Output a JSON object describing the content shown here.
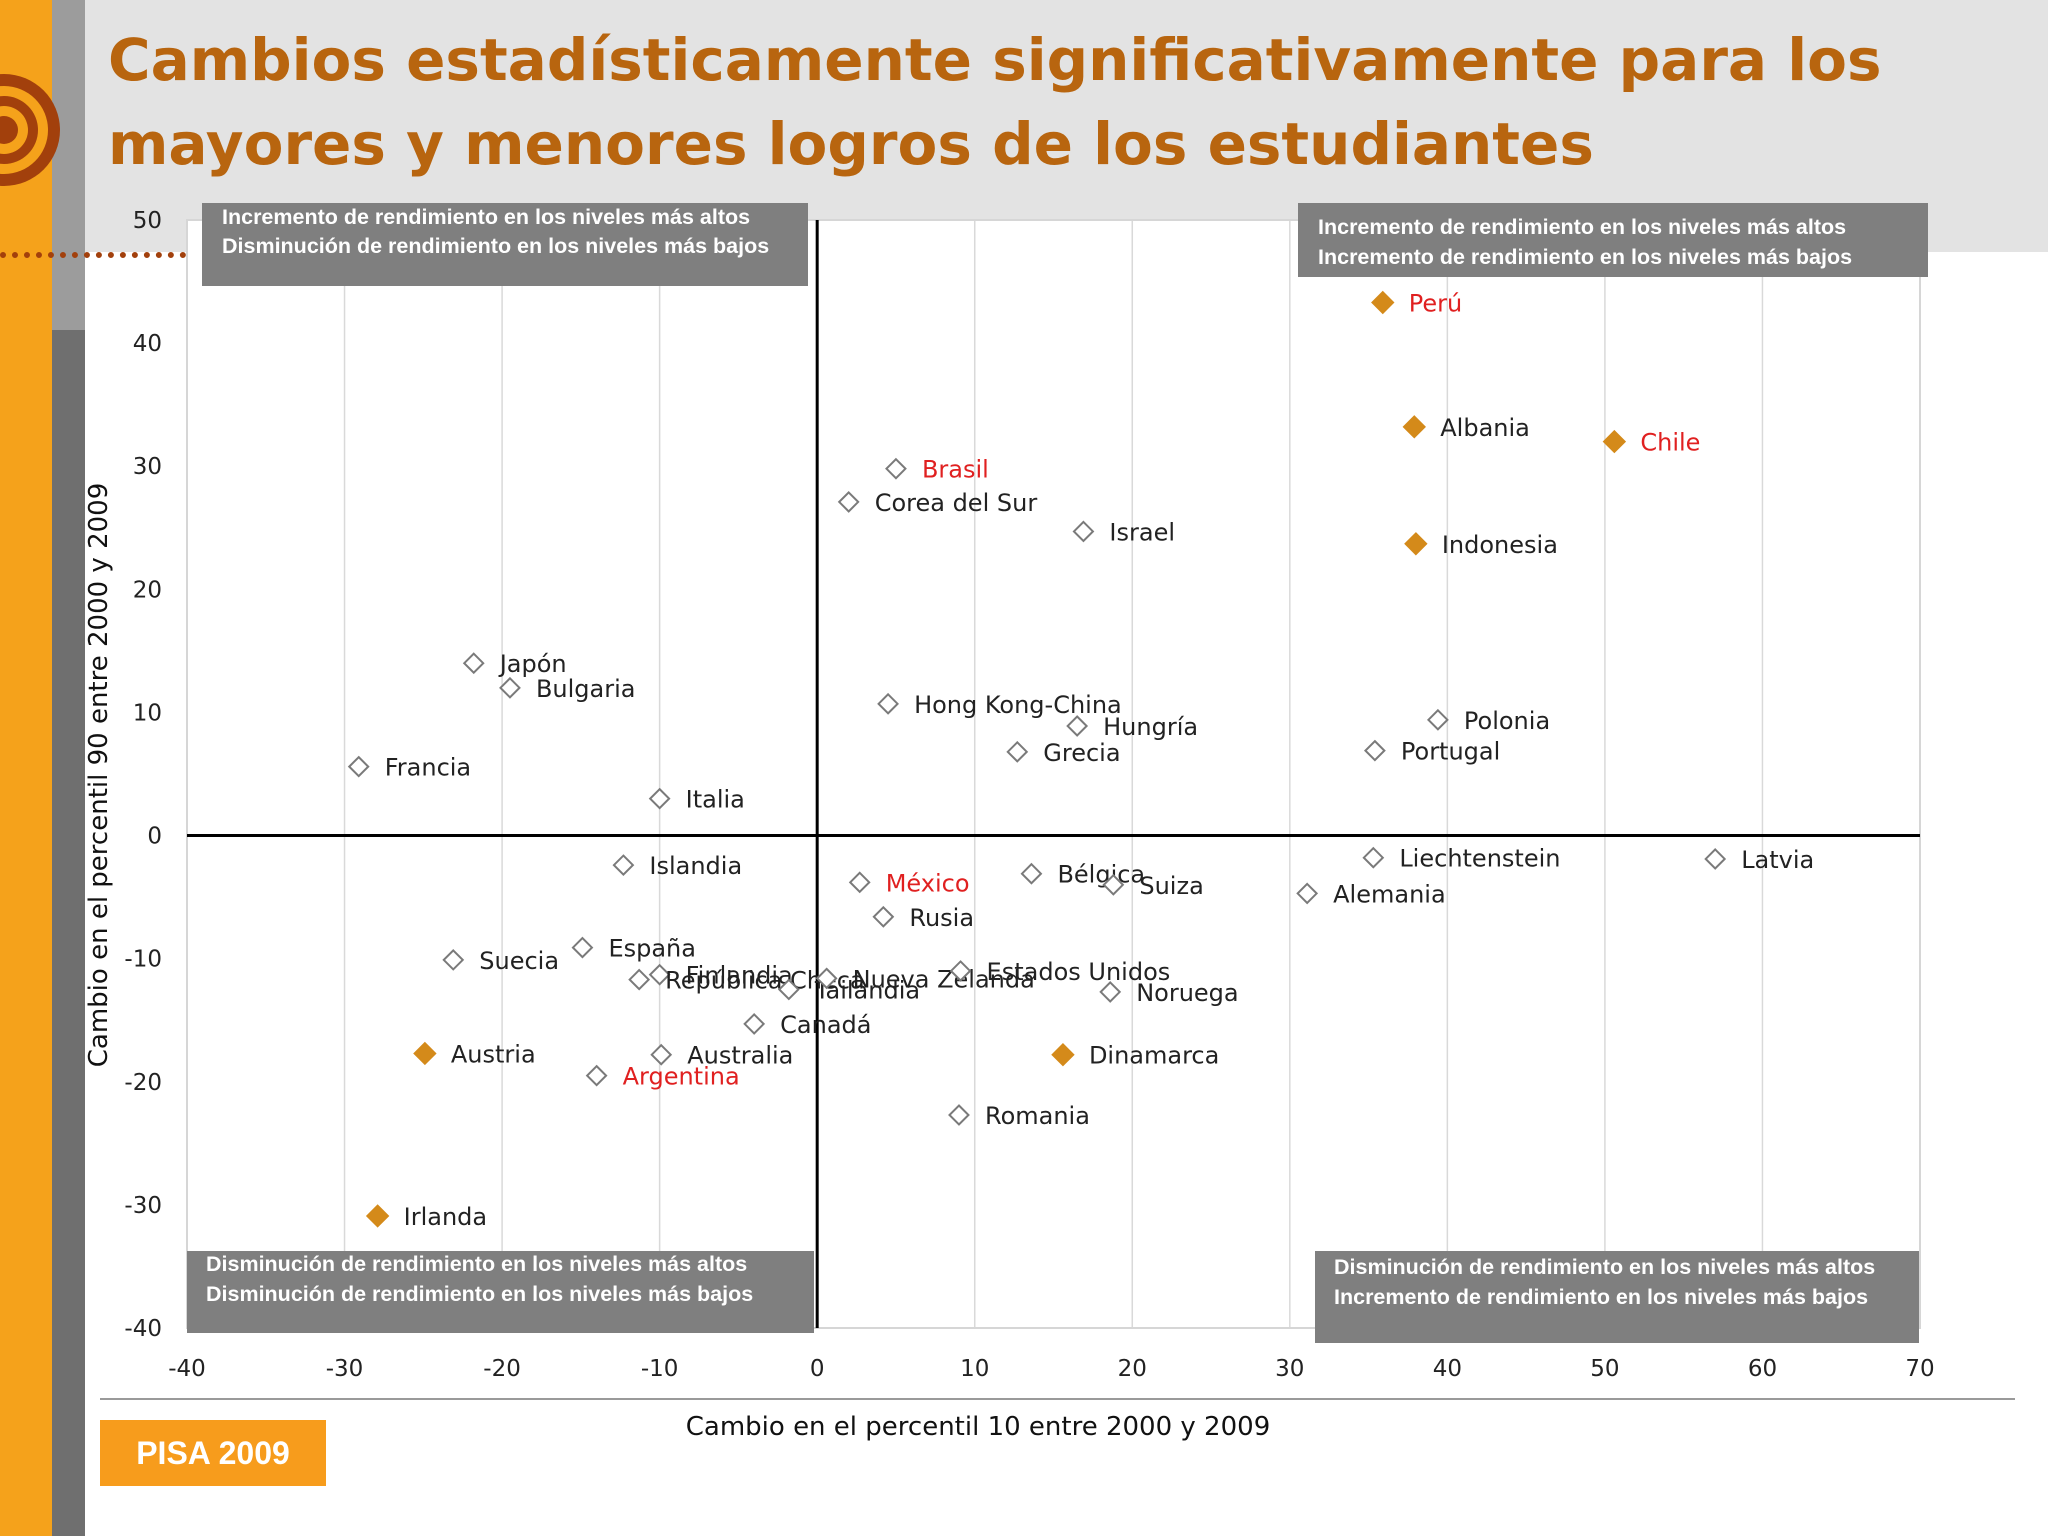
{
  "slide": {
    "title_line1": "Cambios estadísticamente significativamente para los",
    "title_line2": "mayores y menores logros de los estudiantes",
    "badge": "PISA 2009"
  },
  "colors": {
    "accent_orange": "#f5a21b",
    "title_brown": "#b8650f",
    "highlight_marker": "#d48a1a",
    "highlight_label": "#e02020",
    "quadrant_box": "#7f7f7f"
  },
  "chart_data": {
    "type": "scatter",
    "xlabel": "Cambio en el  percentil 10 entre 2000 y 2009",
    "ylabel": "Cambio en el percentil 90 entre 2000 y 2009",
    "xlim": [
      -40,
      70
    ],
    "ylim": [
      -40,
      50
    ],
    "xticks": [
      -40,
      -30,
      -20,
      -10,
      0,
      10,
      20,
      30,
      40,
      50,
      60,
      70
    ],
    "yticks": [
      -40,
      -30,
      -20,
      -10,
      0,
      10,
      20,
      30,
      40,
      50
    ],
    "grid": "vertical",
    "quadrant_labels": {
      "top_left": [
        "Incremento de rendimiento en los niveles más altos",
        "Disminución de rendimiento en los niveles más bajos"
      ],
      "top_right": [
        "Incremento de rendimiento en los niveles más altos",
        "Incremento de rendimiento en los niveles más bajos"
      ],
      "bottom_left": [
        "Disminución de rendimiento en los niveles más altos",
        "Disminución  de rendimiento en los niveles más bajos"
      ],
      "bottom_right": [
        "Disminución de rendimiento en los niveles más altos",
        "Incremento de rendimiento en los niveles más bajos"
      ]
    },
    "points": [
      {
        "label": "Perú",
        "x": 35.9,
        "y": 43.3,
        "filled": true,
        "highlight": true
      },
      {
        "label": "Albania",
        "x": 37.9,
        "y": 33.2,
        "filled": true,
        "highlight": false
      },
      {
        "label": "Chile",
        "x": 50.6,
        "y": 32.0,
        "filled": true,
        "highlight": true
      },
      {
        "label": "Indonesia",
        "x": 38.0,
        "y": 23.7,
        "filled": true,
        "highlight": false
      },
      {
        "label": "Brasil",
        "x": 5.0,
        "y": 29.8,
        "filled": false,
        "highlight": true
      },
      {
        "label": "Corea del Sur",
        "x": 2.0,
        "y": 27.1,
        "filled": false,
        "highlight": false
      },
      {
        "label": "Israel",
        "x": 16.9,
        "y": 24.7,
        "filled": false,
        "highlight": false
      },
      {
        "label": "Japón",
        "x": -21.8,
        "y": 14.0,
        "filled": false,
        "highlight": false
      },
      {
        "label": "Bulgaria",
        "x": -19.5,
        "y": 12.0,
        "filled": false,
        "highlight": false
      },
      {
        "label": "Hong Kong-China",
        "x": 4.5,
        "y": 10.7,
        "filled": false,
        "highlight": false
      },
      {
        "label": "Hungría",
        "x": 16.5,
        "y": 8.9,
        "filled": false,
        "highlight": false
      },
      {
        "label": "Grecia",
        "x": 12.7,
        "y": 6.8,
        "filled": false,
        "highlight": false
      },
      {
        "label": "Polonia",
        "x": 39.4,
        "y": 9.4,
        "filled": false,
        "highlight": false
      },
      {
        "label": "Portugal",
        "x": 35.4,
        "y": 6.9,
        "filled": false,
        "highlight": false
      },
      {
        "label": "Francia",
        "x": -29.1,
        "y": 5.6,
        "filled": false,
        "highlight": false
      },
      {
        "label": "Italia",
        "x": -10.0,
        "y": 3.0,
        "filled": false,
        "highlight": false
      },
      {
        "label": "Islandia",
        "x": -12.3,
        "y": -2.4,
        "filled": false,
        "highlight": false
      },
      {
        "label": "Liechtenstein",
        "x": 35.3,
        "y": -1.8,
        "filled": false,
        "highlight": false
      },
      {
        "label": "Latvia",
        "x": 57.0,
        "y": -1.9,
        "filled": false,
        "highlight": false
      },
      {
        "label": "México",
        "x": 2.7,
        "y": -3.8,
        "filled": false,
        "highlight": true
      },
      {
        "label": "Bélgica",
        "x": 13.6,
        "y": -3.1,
        "filled": false,
        "highlight": false
      },
      {
        "label": "Suiza",
        "x": 18.8,
        "y": -4.0,
        "filled": false,
        "highlight": false
      },
      {
        "label": "Alemania",
        "x": 31.1,
        "y": -4.7,
        "filled": false,
        "highlight": false
      },
      {
        "label": "Rusia",
        "x": 4.2,
        "y": -6.6,
        "filled": false,
        "highlight": false
      },
      {
        "label": "España",
        "x": -14.9,
        "y": -9.1,
        "filled": false,
        "highlight": false
      },
      {
        "label": "Suecia",
        "x": -23.1,
        "y": -10.1,
        "filled": false,
        "highlight": false
      },
      {
        "label": "Finlandia",
        "x": -10.0,
        "y": -11.3,
        "filled": false,
        "highlight": false
      },
      {
        "label": "República Checa",
        "x": -11.3,
        "y": -11.7,
        "filled": false,
        "highlight": false
      },
      {
        "label": "Tailandia",
        "x": -1.8,
        "y": -12.5,
        "filled": false,
        "highlight": false
      },
      {
        "label": "Nueva Zelanda",
        "x": 0.6,
        "y": -11.6,
        "filled": false,
        "highlight": false
      },
      {
        "label": "Estados Unidos",
        "x": 9.1,
        "y": -11.0,
        "filled": false,
        "highlight": false
      },
      {
        "label": "Noruega",
        "x": 18.6,
        "y": -12.7,
        "filled": false,
        "highlight": false
      },
      {
        "label": "Canadá",
        "x": -4.0,
        "y": -15.3,
        "filled": false,
        "highlight": false
      },
      {
        "label": "Austria",
        "x": -24.9,
        "y": -17.7,
        "filled": true,
        "highlight": false
      },
      {
        "label": "Australia",
        "x": -9.9,
        "y": -17.8,
        "filled": false,
        "highlight": false
      },
      {
        "label": "Argentina",
        "x": -14.0,
        "y": -19.5,
        "filled": false,
        "highlight": true
      },
      {
        "label": "Dinamarca",
        "x": 15.6,
        "y": -17.8,
        "filled": true,
        "highlight": false
      },
      {
        "label": "Romania",
        "x": 9.0,
        "y": -22.7,
        "filled": false,
        "highlight": false
      },
      {
        "label": "Irlanda",
        "x": -27.9,
        "y": -30.9,
        "filled": true,
        "highlight": false
      }
    ]
  }
}
